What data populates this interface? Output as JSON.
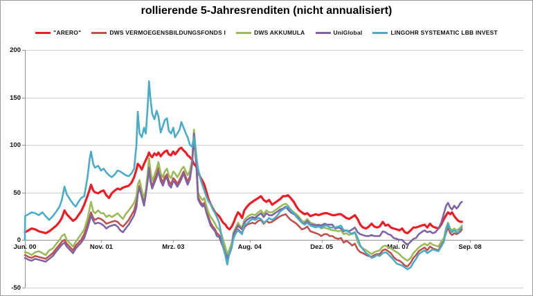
{
  "title": "rollierende 5-Jahresrenditen (nicht annualisiert)",
  "axes": {
    "y_ticks": [
      200,
      150,
      100,
      50,
      0,
      -50
    ],
    "x_ticks": [
      {
        "label": "Jun. 00",
        "month": 0
      },
      {
        "label": "Nov. 01",
        "month": 17
      },
      {
        "label": "Mrz. 03",
        "month": 33
      },
      {
        "label": "Aug. 04",
        "month": 50
      },
      {
        "label": "Dez. 05",
        "month": 66
      },
      {
        "label": "Mai. 07",
        "month": 83
      },
      {
        "label": "Sep. 08",
        "month": 99
      }
    ]
  },
  "chart_data": {
    "type": "line",
    "title": "rollierende 5-Jahresrenditen (nicht annualisiert)",
    "xlabel": "",
    "ylabel": "",
    "ylim": [
      -50,
      200
    ],
    "grid": true,
    "legend_position": "top",
    "x_unit": "months since Jun 2000",
    "x": [
      0,
      0.05,
      0.8,
      1.5,
      2.3,
      3.1,
      3.9,
      4.6,
      5.4,
      6.2,
      7,
      7.7,
      8.2,
      8.8,
      9.3,
      10.1,
      10.7,
      11.3,
      11.9,
      12.5,
      13.2,
      13.9,
      14.4,
      14.7,
      15.2,
      15.6,
      16.3,
      16.9,
      17.5,
      18.1,
      18.7,
      19.3,
      20,
      20.6,
      21.2,
      21.8,
      22.4,
      23.1,
      23.7,
      24.3,
      24.8,
      25.1,
      25.5,
      26,
      26.5,
      26.9,
      27.3,
      27.6,
      27.9,
      28.3,
      28.8,
      29.3,
      29.7,
      30.2,
      30.7,
      31.1,
      31.6,
      32,
      32.5,
      33,
      33.4,
      33.9,
      34.4,
      34.8,
      35.3,
      35.8,
      36.2,
      36.7,
      37.2,
      37.6,
      38.1,
      38.5,
      39,
      39.5,
      39.9,
      40.4,
      40.9,
      41.3,
      41.8,
      42.3,
      42.7,
      43.2,
      43.7,
      44.1,
      44.6,
      45,
      45.5,
      46,
      46.4,
      46.9,
      47.4,
      47.8,
      48.3,
      48.8,
      49.4,
      50,
      50.6,
      51.2,
      51.9,
      52.5,
      53.1,
      53.7,
      54.3,
      55,
      55.6,
      56.2,
      56.8,
      57.4,
      58,
      58.5,
      59.1,
      59.8,
      60.4,
      61,
      61.6,
      62.2,
      62.8,
      63.5,
      64.1,
      64.7,
      65.3,
      65.9,
      66.6,
      67.2,
      67.8,
      68.4,
      69,
      69.7,
      70.3,
      70.9,
      71.5,
      72.1,
      72.8,
      73.4,
      74,
      74.6,
      75.2,
      75.9,
      76.5,
      77.1,
      77.7,
      78.3,
      78.9,
      79.6,
      80.2,
      80.8,
      81.4,
      82,
      82.7,
      83.3,
      83.9,
      84.5,
      85.1,
      85.8,
      86.4,
      87,
      87.6,
      88.2,
      88.9,
      89.5,
      90.1,
      90.7,
      91.3,
      92,
      92.6,
      93.2,
      93.7,
      94.1,
      94.6,
      95,
      95.5,
      96,
      96.4,
      96.9,
      97.2
    ],
    "series": [
      {
        "name": "\"ARERO\"",
        "color": "#ee1c25",
        "width": 3.2,
        "values": [
          8,
          8,
          10,
          12,
          11,
          9,
          8,
          7,
          9,
          12,
          15,
          19,
          23,
          31,
          27,
          23,
          20,
          22,
          26,
          30,
          37,
          46,
          53,
          58,
          52,
          50,
          49,
          51,
          52,
          47,
          44,
          49,
          52,
          54,
          53,
          55,
          56,
          57,
          60,
          66,
          74,
          80,
          78,
          74,
          80,
          84,
          88,
          92,
          89,
          87,
          91,
          89,
          92,
          88,
          91,
          93,
          94,
          90,
          89,
          93,
          90,
          93,
          96,
          97,
          94,
          92,
          89,
          87,
          84,
          80,
          77,
          72,
          66,
          62,
          58,
          50,
          42,
          38,
          33,
          29,
          27,
          25,
          21,
          18,
          16,
          13,
          11,
          14,
          18,
          24,
          29,
          27,
          23,
          31,
          35,
          38,
          40,
          42,
          44,
          46,
          42,
          40,
          42,
          37,
          39,
          41,
          43,
          46,
          46,
          47,
          44,
          40,
          35,
          31,
          29,
          27,
          28,
          25,
          26,
          27,
          26,
          27,
          28,
          28,
          27,
          26,
          26,
          27,
          27,
          25,
          23,
          22,
          24,
          26,
          22,
          16,
          13,
          12,
          14,
          17,
          14,
          13,
          14,
          19,
          15,
          16,
          13,
          12,
          11,
          10,
          12,
          8,
          7,
          10,
          13,
          13,
          14,
          15,
          16,
          13,
          17,
          14,
          13,
          12,
          16,
          22,
          26,
          29,
          27,
          29,
          25,
          22,
          20,
          19,
          19
        ]
      },
      {
        "name": "DWS VERMOEGENSBILDUNGSFONDS I",
        "color": "#c0504d",
        "width": 2.6,
        "values": [
          -16,
          -16,
          -18,
          -19,
          -17,
          -18,
          -19,
          -20,
          -17,
          -14,
          -9,
          -5,
          -2,
          0,
          -4,
          -8,
          -11,
          -6,
          -3,
          0,
          6,
          16,
          24,
          29,
          23,
          21,
          23,
          22,
          20,
          17,
          18,
          19,
          20,
          19,
          16,
          14,
          17,
          21,
          26,
          31,
          40,
          52,
          57,
          48,
          39,
          50,
          65,
          80,
          64,
          56,
          63,
          70,
          76,
          66,
          60,
          66,
          69,
          62,
          58,
          65,
          63,
          59,
          63,
          67,
          72,
          66,
          61,
          67,
          82,
          107,
          80,
          45,
          40,
          37,
          39,
          30,
          23,
          18,
          14,
          11,
          7,
          5,
          0,
          -5,
          -11,
          -17,
          -12,
          -6,
          2,
          7,
          11,
          9,
          7,
          13,
          16,
          17,
          18,
          17,
          20,
          21,
          17,
          20,
          18,
          19,
          21,
          23,
          25,
          26,
          27,
          24,
          21,
          19,
          17,
          14,
          11,
          12,
          14,
          9,
          8,
          7,
          6,
          4,
          6,
          6,
          4,
          4,
          2,
          1,
          2,
          -3,
          -1,
          -3,
          -6,
          -4,
          -10,
          -13,
          -14,
          -16,
          -17,
          -18,
          -16,
          -15,
          -15,
          -11,
          -10,
          -12,
          -14,
          -18,
          -21,
          -22,
          -24,
          -27,
          -28,
          -24,
          -19,
          -16,
          -12,
          -10,
          -8,
          -11,
          -7,
          -9,
          -10,
          -11,
          -5,
          0,
          8,
          13,
          7,
          5,
          7,
          6,
          7,
          9,
          11
        ]
      },
      {
        "name": "DWS AKKUMULA",
        "color": "#9bbb59",
        "width": 2.6,
        "values": [
          -13,
          -13,
          -14,
          -16,
          -13,
          -12,
          -14,
          -16,
          -11,
          -9,
          -4,
          0,
          4,
          6,
          0,
          -4,
          -7,
          -2,
          2,
          6,
          11,
          22,
          33,
          40,
          30,
          28,
          31,
          28,
          28,
          24,
          26,
          24,
          26,
          28,
          25,
          22,
          27,
          31,
          35,
          39,
          46,
          58,
          63,
          52,
          44,
          53,
          70,
          86,
          74,
          62,
          68,
          75,
          82,
          70,
          66,
          72,
          75,
          68,
          65,
          72,
          70,
          66,
          70,
          74,
          77,
          72,
          68,
          73,
          85,
          116,
          90,
          50,
          45,
          42,
          44,
          35,
          28,
          24,
          21,
          17,
          13,
          11,
          6,
          0,
          -8,
          -15,
          -10,
          -3,
          8,
          13,
          18,
          15,
          13,
          21,
          24,
          26,
          27,
          26,
          29,
          31,
          27,
          31,
          29,
          29,
          31,
          33,
          35,
          37,
          38,
          36,
          32,
          29,
          27,
          24,
          20,
          19,
          22,
          18,
          17,
          16,
          15,
          12,
          13,
          12,
          11,
          10,
          10,
          9,
          10,
          6,
          7,
          5,
          7,
          8,
          -2,
          -7,
          -9,
          -11,
          -13,
          -15,
          -13,
          -12,
          -11,
          -7,
          -6,
          -8,
          -9,
          -11,
          -13,
          -15,
          -18,
          -20,
          -22,
          -19,
          -14,
          -11,
          -8,
          -6,
          -4,
          -6,
          -3,
          -5,
          -6,
          -7,
          -2,
          2,
          13,
          18,
          12,
          10,
          12,
          10,
          11,
          13,
          15
        ]
      },
      {
        "name": "UniGlobal",
        "color": "#8064a2",
        "width": 2.6,
        "values": [
          -19,
          -19,
          -21,
          -22,
          -20,
          -21,
          -22,
          -23,
          -20,
          -17,
          -12,
          -8,
          -5,
          -3,
          -7,
          -11,
          -14,
          -9,
          -6,
          -3,
          2,
          12,
          20,
          26,
          20,
          17,
          18,
          17,
          15,
          12,
          14,
          15,
          16,
          14,
          10,
          8,
          12,
          16,
          21,
          26,
          34,
          48,
          55,
          45,
          36,
          48,
          62,
          76,
          62,
          54,
          60,
          66,
          72,
          62,
          57,
          63,
          66,
          58,
          55,
          62,
          60,
          56,
          60,
          64,
          70,
          63,
          58,
          64,
          80,
          112,
          85,
          43,
          38,
          35,
          37,
          28,
          21,
          15,
          12,
          9,
          4,
          3,
          -3,
          -8,
          -14,
          -21,
          -15,
          -8,
          6,
          11,
          15,
          13,
          11,
          18,
          21,
          23,
          24,
          23,
          26,
          28,
          24,
          28,
          26,
          26,
          28,
          30,
          32,
          33,
          35,
          32,
          29,
          27,
          25,
          22,
          18,
          17,
          20,
          16,
          16,
          15,
          16,
          15,
          17,
          16,
          16,
          16,
          12,
          13,
          12,
          9,
          10,
          9,
          11,
          13,
          8,
          6,
          5,
          4,
          4,
          5,
          4,
          4,
          4,
          9,
          8,
          6,
          5,
          2,
          1,
          0,
          0,
          -3,
          -5,
          -2,
          1,
          2,
          6,
          8,
          10,
          8,
          9,
          7,
          8,
          12,
          18,
          28,
          36,
          39,
          34,
          32,
          36,
          33,
          35,
          39,
          40
        ]
      },
      {
        "name": "LINGOHR SYSTEMATIC LBB INVEST",
        "color": "#4bacc6",
        "width": 2.6,
        "values": [
          0,
          25,
          27,
          29,
          28,
          26,
          29,
          25,
          21,
          25,
          30,
          35,
          42,
          56,
          48,
          42,
          38,
          35,
          40,
          44,
          46,
          65,
          85,
          93,
          80,
          76,
          78,
          73,
          75,
          71,
          68,
          66,
          69,
          73,
          72,
          70,
          68,
          67,
          70,
          75,
          100,
          135,
          112,
          108,
          118,
          112,
          140,
          167,
          150,
          133,
          127,
          136,
          130,
          113,
          120,
          126,
          128,
          115,
          112,
          118,
          108,
          112,
          116,
          124,
          118,
          112,
          108,
          100,
          98,
          108,
          88,
          75,
          65,
          57,
          52,
          45,
          40,
          38,
          32,
          28,
          24,
          18,
          5,
          -8,
          -17,
          -26,
          -14,
          -7,
          2,
          7,
          10,
          8,
          6,
          16,
          17,
          20,
          22,
          21,
          23,
          22,
          18,
          20,
          23,
          21,
          23,
          26,
          30,
          32,
          34,
          35,
          31,
          28,
          24,
          21,
          18,
          16,
          18,
          15,
          14,
          13,
          14,
          13,
          15,
          15,
          13,
          13,
          13,
          14,
          15,
          10,
          10,
          8,
          6,
          8,
          2,
          -6,
          -10,
          -14,
          -16,
          -19,
          -18,
          -16,
          -17,
          -14,
          -13,
          -15,
          -18,
          -21,
          -25,
          -26,
          -27,
          -29,
          -31,
          -29,
          -24,
          -20,
          -15,
          -13,
          -11,
          -14,
          -12,
          -10,
          -11,
          -12,
          -7,
          -2,
          11,
          17,
          10,
          8,
          10,
          8,
          8,
          12,
          13
        ]
      }
    ]
  }
}
